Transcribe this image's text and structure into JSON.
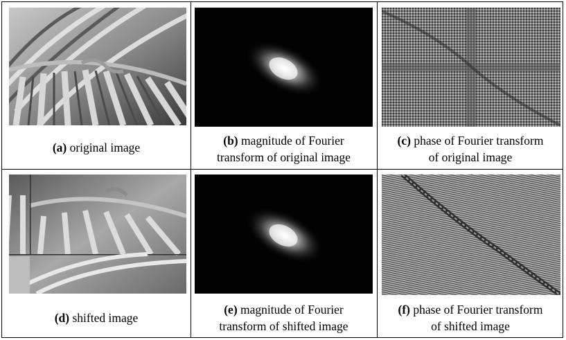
{
  "panels": [
    {
      "label": "(a)",
      "line1": "original  image",
      "line2": ""
    },
    {
      "label": "(b)",
      "line1": "magnitude  of Fourier",
      "line2": "transform  of original  image"
    },
    {
      "label": "(c)",
      "line1": "phase of Fourier  transform",
      "line2": "of original  image"
    },
    {
      "label": "(d)",
      "line1": "shifted  image",
      "line2": ""
    },
    {
      "label": "(e)",
      "line1": "magnitude  of Fourier",
      "line2": "transform  of shifted  image"
    },
    {
      "label": "(f)",
      "line1": "phase of Fourier  transform",
      "line2": "of shifted  image"
    }
  ]
}
